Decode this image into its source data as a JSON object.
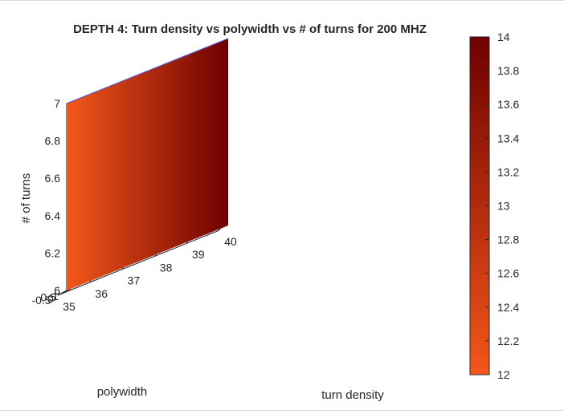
{
  "chart_data": {
    "type": "surface",
    "title": "DEPTH 4: Turn density vs polywidth vs # of turns for 200 MHZ",
    "xlabel": "turn density",
    "ylabel": "polywidth",
    "zlabel": "# of turns",
    "xlim": [
      35,
      40
    ],
    "ylim": [
      -0.75,
      1
    ],
    "zlim": [
      6,
      7
    ],
    "x_ticks": [
      "35",
      "36",
      "37",
      "38",
      "39",
      "40"
    ],
    "y_ticks": [
      "-0.5",
      "0",
      "0.5",
      "1"
    ],
    "z_ticks": [
      "6",
      "6.2",
      "6.4",
      "6.6",
      "6.8",
      "7"
    ],
    "grid": true,
    "surface": {
      "x": [
        35,
        40
      ],
      "y": [
        1,
        1
      ],
      "z": [
        6,
        7
      ],
      "color_values_at_x": [
        12,
        14
      ]
    },
    "colorbar": {
      "range": [
        12,
        14
      ],
      "ticks": [
        "12",
        "12.2",
        "12.4",
        "12.6",
        "12.8",
        "13",
        "13.2",
        "13.4",
        "13.6",
        "13.8",
        "14"
      ],
      "colormap_low": "#f4571a",
      "colormap_high": "#6e0000"
    },
    "axis_color": "#262626",
    "grid_color": "#e3e3e3",
    "edge_color": "#5a5ad0"
  }
}
